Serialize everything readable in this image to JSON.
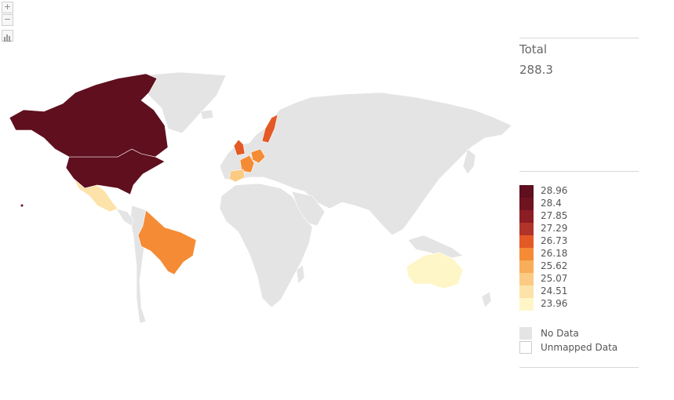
{
  "controls": {
    "zoom_in": "+",
    "zoom_out": "−"
  },
  "summary": {
    "label": "Total",
    "value": "288.3"
  },
  "legend": {
    "bins": [
      {
        "label": "28.96",
        "color": "#5f0f1e"
      },
      {
        "label": "28.4",
        "color": "#6e1420"
      },
      {
        "label": "27.85",
        "color": "#8c1d24"
      },
      {
        "label": "27.29",
        "color": "#b0342a"
      },
      {
        "label": "26.73",
        "color": "#e45a26"
      },
      {
        "label": "26.18",
        "color": "#f58b35"
      },
      {
        "label": "25.62",
        "color": "#f8ad5a"
      },
      {
        "label": "25.07",
        "color": "#fbcb84"
      },
      {
        "label": "24.51",
        "color": "#fde3a9"
      },
      {
        "label": "23.96",
        "color": "#fff6c8"
      }
    ],
    "no_data": {
      "label": "No Data",
      "color": "#e4e4e4"
    },
    "unmapped": {
      "label": "Unmapped Data",
      "color": "#ffffff"
    }
  },
  "colors": {
    "land": "#e4e4e4",
    "border": "#ffffff"
  },
  "map_data": [
    {
      "name": "United States",
      "value": 28.96
    },
    {
      "name": "Canada",
      "value": 28.96
    },
    {
      "name": "Sweden",
      "value": 26.73
    },
    {
      "name": "United Kingdom",
      "value": 26.73
    },
    {
      "name": "Brazil",
      "value": 26.18
    },
    {
      "name": "France",
      "value": 26.18
    },
    {
      "name": "Germany",
      "value": 26.18
    },
    {
      "name": "Spain",
      "value": 25.07
    },
    {
      "name": "Mexico",
      "value": 24.51
    },
    {
      "name": "Australia",
      "value": 23.96
    }
  ]
}
